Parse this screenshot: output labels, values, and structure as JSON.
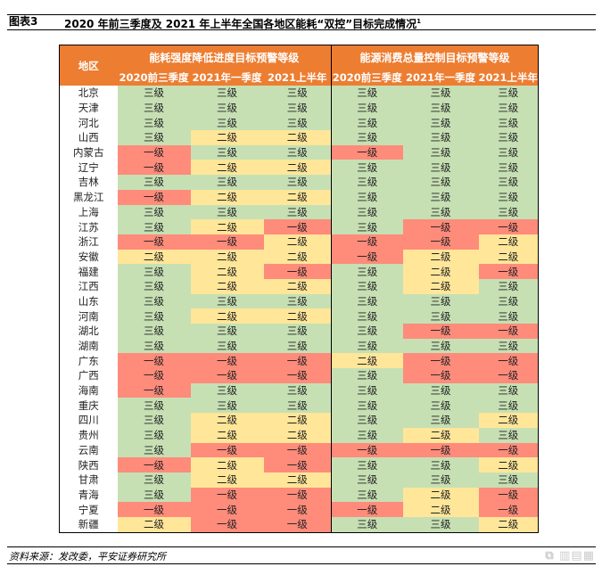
{
  "title": {
    "label": "图表3",
    "text": "2020 年前三季度及 2021 年上半年全国各地区能耗“双控”目标完成情况",
    "footnote_mark": "1"
  },
  "table": {
    "region_header": "地区",
    "groups": [
      "能耗强度降低进度目标预警等级",
      "能源消费总量控制目标预警等级"
    ],
    "periods": [
      "2020前三季度",
      "2021年一季度",
      "2021上半年",
      "2020前三季度",
      "2021年一季度",
      "2021上半年"
    ],
    "level_colors": {
      "三级": "#c6e0b4",
      "二级": "#ffe699",
      "一级": "#ff8b7b"
    },
    "header_color": "#ed7d31",
    "rows": [
      {
        "region": "北京",
        "values": [
          "三级",
          "三级",
          "三级",
          "三级",
          "三级",
          "三级"
        ]
      },
      {
        "region": "天津",
        "values": [
          "三级",
          "三级",
          "三级",
          "三级",
          "三级",
          "三级"
        ]
      },
      {
        "region": "河北",
        "values": [
          "三级",
          "三级",
          "三级",
          "三级",
          "三级",
          "三级"
        ]
      },
      {
        "region": "山西",
        "values": [
          "三级",
          "二级",
          "二级",
          "三级",
          "三级",
          "三级"
        ]
      },
      {
        "region": "内蒙古",
        "values": [
          "一级",
          "三级",
          "三级",
          "一级",
          "三级",
          "三级"
        ]
      },
      {
        "region": "辽宁",
        "values": [
          "一级",
          "二级",
          "二级",
          "三级",
          "三级",
          "三级"
        ]
      },
      {
        "region": "吉林",
        "values": [
          "三级",
          "三级",
          "三级",
          "三级",
          "三级",
          "三级"
        ]
      },
      {
        "region": "黑龙江",
        "values": [
          "一级",
          "二级",
          "二级",
          "三级",
          "三级",
          "三级"
        ]
      },
      {
        "region": "上海",
        "values": [
          "三级",
          "三级",
          "三级",
          "三级",
          "三级",
          "三级"
        ]
      },
      {
        "region": "江苏",
        "values": [
          "三级",
          "二级",
          "一级",
          "三级",
          "一级",
          "一级"
        ]
      },
      {
        "region": "浙江",
        "values": [
          "一级",
          "一级",
          "二级",
          "一级",
          "一级",
          "二级"
        ]
      },
      {
        "region": "安徽",
        "values": [
          "二级",
          "二级",
          "二级",
          "一级",
          "二级",
          "二级"
        ]
      },
      {
        "region": "福建",
        "values": [
          "三级",
          "二级",
          "一级",
          "三级",
          "二级",
          "一级"
        ]
      },
      {
        "region": "江西",
        "values": [
          "三级",
          "二级",
          "二级",
          "三级",
          "二级",
          "三级"
        ]
      },
      {
        "region": "山东",
        "values": [
          "三级",
          "三级",
          "三级",
          "三级",
          "三级",
          "三级"
        ]
      },
      {
        "region": "河南",
        "values": [
          "三级",
          "二级",
          "二级",
          "三级",
          "三级",
          "三级"
        ]
      },
      {
        "region": "湖北",
        "values": [
          "三级",
          "三级",
          "三级",
          "三级",
          "一级",
          "一级"
        ]
      },
      {
        "region": "湖南",
        "values": [
          "三级",
          "三级",
          "三级",
          "三级",
          "三级",
          "三级"
        ]
      },
      {
        "region": "广东",
        "values": [
          "一级",
          "一级",
          "一级",
          "二级",
          "一级",
          "一级"
        ]
      },
      {
        "region": "广西",
        "values": [
          "一级",
          "一级",
          "一级",
          "三级",
          "一级",
          "一级"
        ]
      },
      {
        "region": "海南",
        "values": [
          "一级",
          "三级",
          "三级",
          "三级",
          "三级",
          "三级"
        ]
      },
      {
        "region": "重庆",
        "values": [
          "三级",
          "三级",
          "三级",
          "三级",
          "三级",
          "三级"
        ]
      },
      {
        "region": "四川",
        "values": [
          "三级",
          "二级",
          "二级",
          "三级",
          "三级",
          "二级"
        ]
      },
      {
        "region": "贵州",
        "values": [
          "三级",
          "二级",
          "二级",
          "三级",
          "二级",
          "三级"
        ]
      },
      {
        "region": "云南",
        "values": [
          "三级",
          "一级",
          "一级",
          "一级",
          "一级",
          "一级"
        ]
      },
      {
        "region": "陕西",
        "values": [
          "一级",
          "二级",
          "一级",
          "三级",
          "三级",
          "二级"
        ]
      },
      {
        "region": "甘肃",
        "values": [
          "三级",
          "二级",
          "二级",
          "三级",
          "三级",
          "三级"
        ]
      },
      {
        "region": "青海",
        "values": [
          "三级",
          "一级",
          "一级",
          "三级",
          "二级",
          "一级"
        ]
      },
      {
        "region": "宁夏",
        "values": [
          "一级",
          "一级",
          "一级",
          "一级",
          "二级",
          "一级"
        ]
      },
      {
        "region": "新疆",
        "values": [
          "二级",
          "一级",
          "一级",
          "三级",
          "三级",
          "二级"
        ]
      }
    ]
  },
  "source": "资料来源：发改委，平安证券研究所",
  "watermark": "格隆汇"
}
